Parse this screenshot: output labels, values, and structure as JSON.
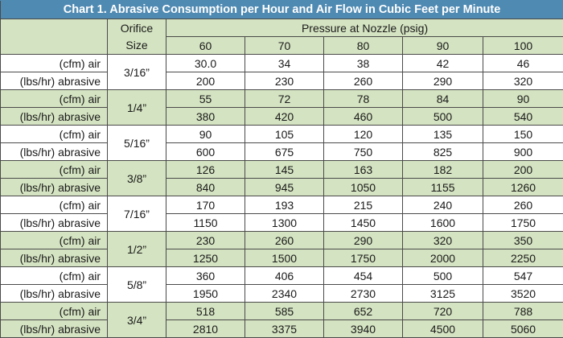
{
  "title": "Chart 1.  Abrasive Consumption per Hour and Air Flow in Cubic Feet per Minute",
  "header": {
    "orifice_line1": "Orifice",
    "orifice_line2": "Size",
    "pressure_label": "Pressure at Nozzle (psig)",
    "pressures": [
      "60",
      "70",
      "80",
      "90",
      "100"
    ]
  },
  "row_labels": {
    "air": "(cfm) air",
    "abrasive": "(lbs/hr) abrasive"
  },
  "rows": [
    {
      "size": "3/16”",
      "air": [
        "30.0",
        "34",
        "38",
        "42",
        "46"
      ],
      "abrasive": [
        "200",
        "230",
        "260",
        "290",
        "320"
      ]
    },
    {
      "size": "1/4”",
      "air": [
        "55",
        "72",
        "78",
        "84",
        "90"
      ],
      "abrasive": [
        "380",
        "420",
        "460",
        "500",
        "540"
      ]
    },
    {
      "size": "5/16”",
      "air": [
        "90",
        "105",
        "120",
        "135",
        "150"
      ],
      "abrasive": [
        "600",
        "675",
        "750",
        "825",
        "900"
      ]
    },
    {
      "size": "3/8”",
      "air": [
        "126",
        "145",
        "163",
        "182",
        "200"
      ],
      "abrasive": [
        "840",
        "945",
        "1050",
        "1155",
        "1260"
      ]
    },
    {
      "size": "7/16”",
      "air": [
        "170",
        "193",
        "215",
        "240",
        "260"
      ],
      "abrasive": [
        "1150",
        "1300",
        "1450",
        "1600",
        "1750"
      ]
    },
    {
      "size": "1/2”",
      "air": [
        "230",
        "260",
        "290",
        "320",
        "350"
      ],
      "abrasive": [
        "1250",
        "1500",
        "1750",
        "2000",
        "2250"
      ]
    },
    {
      "size": "5/8”",
      "air": [
        "360",
        "406",
        "454",
        "500",
        "547"
      ],
      "abrasive": [
        "1950",
        "2340",
        "2730",
        "3125",
        "3520"
      ]
    },
    {
      "size": "3/4”",
      "air": [
        "518",
        "585",
        "652",
        "720",
        "788"
      ],
      "abrasive": [
        "2810",
        "3375",
        "3940",
        "4500",
        "5060"
      ]
    }
  ],
  "colors": {
    "title_bg": "#4f8ab3",
    "band_green": "#d4e3c1",
    "band_white": "#ffffff"
  }
}
